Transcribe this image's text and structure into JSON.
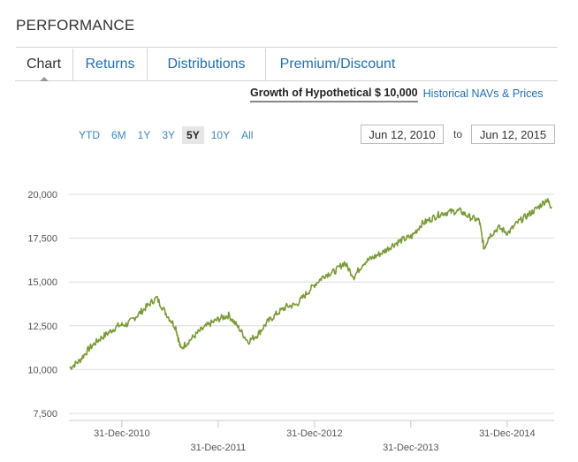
{
  "section": {
    "title": "PERFORMANCE"
  },
  "tabs": [
    {
      "label": "Chart",
      "active": true
    },
    {
      "label": "Returns"
    },
    {
      "label": "Distributions"
    },
    {
      "label": "Premium/Discount"
    }
  ],
  "subtabs": {
    "growth_label": "Growth of Hypothetical $ 10,000",
    "navs_label": "Historical NAVs & Prices"
  },
  "range": {
    "buttons": [
      "YTD",
      "6M",
      "1Y",
      "3Y",
      "5Y",
      "10Y",
      "All"
    ],
    "selected": "5Y",
    "from": "Jun 12, 2010",
    "sep": "to",
    "to": "Jun 12, 2015"
  },
  "chart_data": {
    "type": "line",
    "title": "",
    "xlabel": "",
    "ylabel": "",
    "ylim": [
      7500,
      20000
    ],
    "y_ticks": [
      7500,
      10000,
      12500,
      15000,
      17500,
      20000
    ],
    "y_tick_labels": [
      "7,500",
      "10,000",
      "12,500",
      "15,000",
      "17,500",
      "20,000"
    ],
    "x_tick_labels_upper": [
      "31-Dec-2010",
      "31-Dec-2012",
      "31-Dec-2014"
    ],
    "x_tick_labels_lower": [
      "31-Dec-2011",
      "31-Dec-2013"
    ],
    "color": "#7a9a35",
    "series": [
      {
        "name": "Growth of Hypothetical $ 10,000",
        "x": [
          2010.45,
          2010.55,
          2010.65,
          2010.75,
          2010.85,
          2010.95,
          2011.05,
          2011.15,
          2011.25,
          2011.35,
          2011.45,
          2011.55,
          2011.6,
          2011.7,
          2011.8,
          2011.9,
          2012.0,
          2012.1,
          2012.2,
          2012.3,
          2012.4,
          2012.5,
          2012.6,
          2012.7,
          2012.8,
          2012.9,
          2013.0,
          2013.1,
          2013.2,
          2013.3,
          2013.4,
          2013.5,
          2013.6,
          2013.7,
          2013.8,
          2013.9,
          2014.0,
          2014.1,
          2014.2,
          2014.3,
          2014.4,
          2014.5,
          2014.6,
          2014.7,
          2014.75,
          2014.8,
          2014.9,
          2015.0,
          2015.1,
          2015.2,
          2015.3,
          2015.4,
          2015.45
        ],
        "values": [
          10100,
          10500,
          11200,
          11700,
          12100,
          12500,
          12600,
          13100,
          13600,
          14100,
          13200,
          12400,
          11200,
          11700,
          12200,
          12600,
          12900,
          13100,
          12400,
          11600,
          12000,
          12700,
          13200,
          13600,
          13700,
          14300,
          14900,
          15400,
          15600,
          16100,
          15300,
          16100,
          16400,
          16700,
          17100,
          17400,
          17600,
          18300,
          18600,
          18900,
          19000,
          19050,
          18700,
          18500,
          16900,
          17600,
          18100,
          17800,
          18400,
          18800,
          19200,
          19700,
          19300
        ]
      }
    ]
  }
}
